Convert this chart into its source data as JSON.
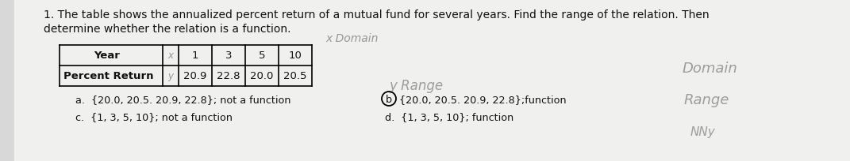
{
  "title_line1": "1. The table shows the annualized percent return of a mutual fund for several years. Find the range of the relation. Then",
  "title_line2": "determine whether the relation is a function.",
  "hw_domain_top": "x Domain",
  "hw_range_mid": "y Range",
  "hw_right_domain": "Domain",
  "hw_right_range": "Range",
  "hw_right_nnn": "NNy",
  "table_row1": [
    "Year",
    "x",
    "1",
    "3",
    "5",
    "10"
  ],
  "table_row2_label": "Percent Return",
  "table_row2_x": "y",
  "table_row2_vals": [
    "20.9",
    "22.8",
    "20.0",
    "20.5"
  ],
  "opt_a": "a.  {20.0, 20.5. 20.9, 22.8}; not a function",
  "opt_b_text": "{20.0, 20.5. 20.9, 22.8};function",
  "opt_c": "c.  {1, 3, 5, 10}; not a function",
  "opt_d": "d.  {1, 3, 5, 10}; function",
  "bg_color": "#d8d8d8",
  "paper_color": "#f0f0ee",
  "text_color": "#111111",
  "hw_color": "#888888",
  "fs_main": 10.0,
  "fs_table": 9.5,
  "fs_opt": 9.2,
  "fs_hw": 10.0
}
